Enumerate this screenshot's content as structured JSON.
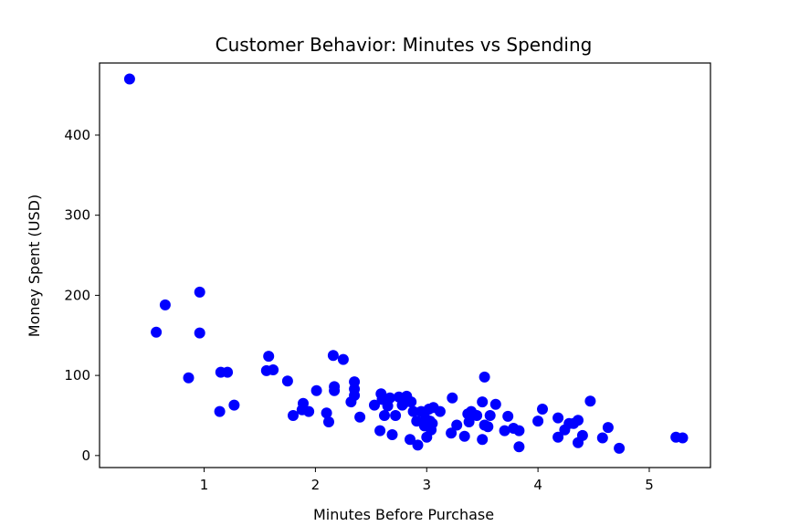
{
  "chart_data": {
    "type": "scatter",
    "title": "Customer Behavior: Minutes vs Spending",
    "xlabel": "Minutes Before Purchase",
    "ylabel": "Money Spent (USD)",
    "xlim": [
      0.06,
      5.55
    ],
    "ylim": [
      -15,
      490
    ],
    "xticks": [
      1,
      2,
      3,
      4,
      5
    ],
    "yticks": [
      0,
      100,
      200,
      300,
      400
    ],
    "grid": false,
    "marker_color": "#0000ff",
    "points": [
      [
        0.33,
        470
      ],
      [
        0.57,
        154
      ],
      [
        0.65,
        188
      ],
      [
        0.86,
        97
      ],
      [
        0.96,
        204
      ],
      [
        0.96,
        153
      ],
      [
        1.14,
        55
      ],
      [
        1.15,
        104
      ],
      [
        1.21,
        104
      ],
      [
        1.27,
        63
      ],
      [
        1.56,
        106
      ],
      [
        1.58,
        124
      ],
      [
        1.62,
        107
      ],
      [
        1.75,
        93
      ],
      [
        1.8,
        50
      ],
      [
        1.88,
        57
      ],
      [
        1.89,
        65
      ],
      [
        1.94,
        55
      ],
      [
        2.01,
        81
      ],
      [
        2.1,
        53
      ],
      [
        2.12,
        42
      ],
      [
        2.16,
        125
      ],
      [
        2.17,
        86
      ],
      [
        2.17,
        81
      ],
      [
        2.25,
        120
      ],
      [
        2.32,
        67
      ],
      [
        2.35,
        92
      ],
      [
        2.35,
        83
      ],
      [
        2.35,
        75
      ],
      [
        2.4,
        48
      ],
      [
        2.53,
        63
      ],
      [
        2.58,
        31
      ],
      [
        2.59,
        77
      ],
      [
        2.6,
        70
      ],
      [
        2.62,
        50
      ],
      [
        2.65,
        62
      ],
      [
        2.67,
        72
      ],
      [
        2.69,
        26
      ],
      [
        2.72,
        50
      ],
      [
        2.75,
        73
      ],
      [
        2.78,
        63
      ],
      [
        2.8,
        66
      ],
      [
        2.82,
        74
      ],
      [
        2.85,
        20
      ],
      [
        2.86,
        67
      ],
      [
        2.88,
        55
      ],
      [
        2.91,
        43
      ],
      [
        2.92,
        13
      ],
      [
        2.95,
        55
      ],
      [
        2.98,
        37
      ],
      [
        2.99,
        46
      ],
      [
        3.0,
        23
      ],
      [
        3.02,
        58
      ],
      [
        3.03,
        43
      ],
      [
        3.04,
        32
      ],
      [
        3.05,
        40
      ],
      [
        3.06,
        60
      ],
      [
        3.12,
        55
      ],
      [
        3.22,
        28
      ],
      [
        3.23,
        72
      ],
      [
        3.27,
        38
      ],
      [
        3.34,
        24
      ],
      [
        3.37,
        52
      ],
      [
        3.38,
        42
      ],
      [
        3.4,
        55
      ],
      [
        3.45,
        50
      ],
      [
        3.5,
        20
      ],
      [
        3.5,
        67
      ],
      [
        3.52,
        98
      ],
      [
        3.52,
        38
      ],
      [
        3.55,
        36
      ],
      [
        3.57,
        50
      ],
      [
        3.62,
        64
      ],
      [
        3.7,
        31
      ],
      [
        3.73,
        49
      ],
      [
        3.78,
        34
      ],
      [
        3.83,
        31
      ],
      [
        3.83,
        11
      ],
      [
        4.0,
        43
      ],
      [
        4.04,
        58
      ],
      [
        4.18,
        47
      ],
      [
        4.18,
        23
      ],
      [
        4.24,
        32
      ],
      [
        4.28,
        40
      ],
      [
        4.32,
        40
      ],
      [
        4.36,
        16
      ],
      [
        4.36,
        44
      ],
      [
        4.4,
        25
      ],
      [
        4.47,
        68
      ],
      [
        4.58,
        22
      ],
      [
        4.63,
        35
      ],
      [
        4.73,
        9
      ],
      [
        5.24,
        23
      ],
      [
        5.3,
        22
      ]
    ]
  }
}
